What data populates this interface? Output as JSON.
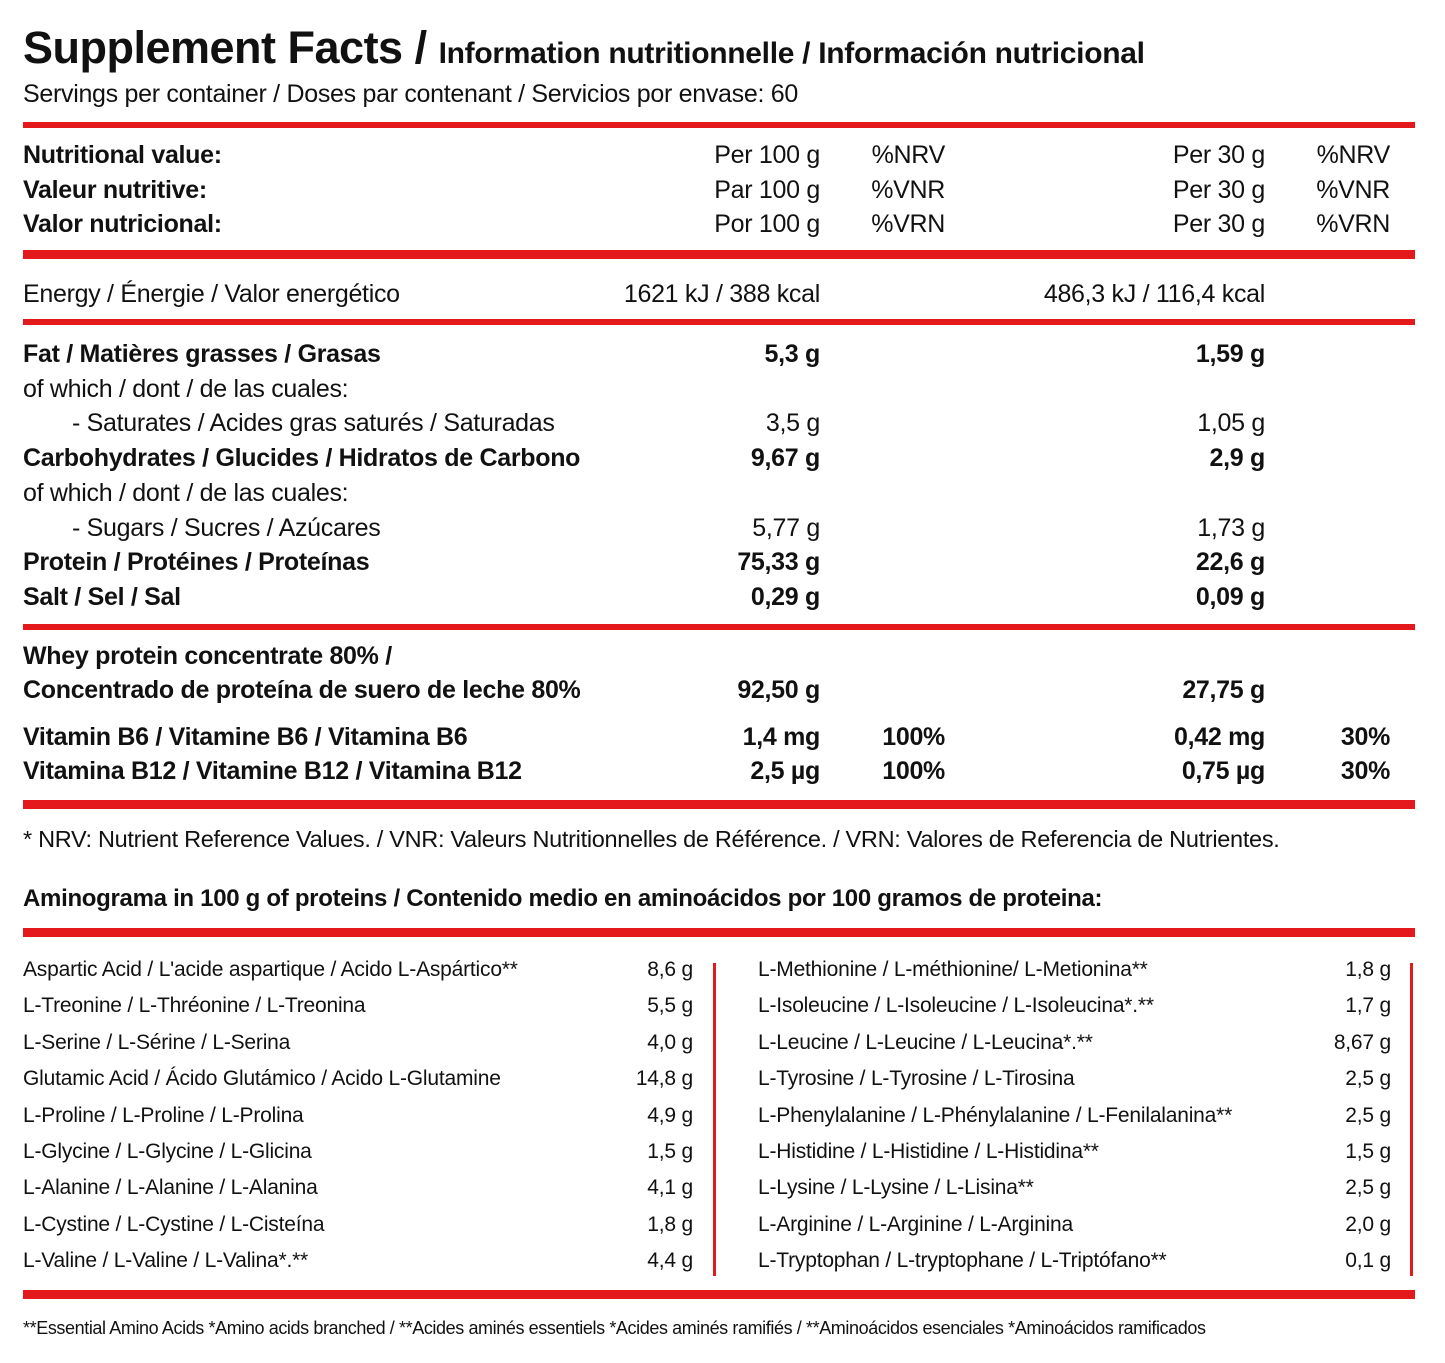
{
  "header": {
    "title": "Supplement Facts /",
    "subtitle": "Information nutritionnelle / Información nutricional",
    "servings": "Servings per container / Doses par contenant / Servicios por envase: 60"
  },
  "colors": {
    "accent": "#e3191b",
    "text": "#111111"
  },
  "column_headers": [
    {
      "label": "Nutritional value:",
      "per100": "Per 100 g",
      "pct100": "%NRV",
      "per30": "Per 30 g",
      "pct30": "%NRV"
    },
    {
      "label": "Valeur nutritive:",
      "per100": "Par 100 g",
      "pct100": "%VNR",
      "per30": "Per 30 g",
      "pct30": "%VNR"
    },
    {
      "label": "Valor nutricional:",
      "per100": "Por 100 g",
      "pct100": "%VRN",
      "per30": "Per 30 g",
      "pct30": "%VRN"
    }
  ],
  "energy": {
    "label": "Energy / Énergie / Valor energético",
    "per100": "1621 kJ / 388 kcal",
    "per30": "486,3 kJ / 116,4 kcal"
  },
  "nutrients": [
    {
      "label": "Fat / Matières grasses / Grasas",
      "per100": "5,3 g",
      "per30": "1,59 g",
      "bold": true
    },
    {
      "label": "of which / dont / de las cuales:",
      "per100": "",
      "per30": ""
    },
    {
      "label": "- Saturates / Acides gras saturés / Saturadas",
      "per100": "3,5 g",
      "per30": "1,05 g",
      "indent": true
    },
    {
      "label": "Carbohydrates / Glucides / Hidratos de Carbono",
      "per100": "9,67 g",
      "per30": "2,9 g",
      "bold": true
    },
    {
      "label": "of which / dont / de las cuales:",
      "per100": "",
      "per30": ""
    },
    {
      "label": "- Sugars / Sucres / Azúcares",
      "per100": "5,77 g",
      "per30": "1,73 g",
      "indent": true
    },
    {
      "label": "Protein / Protéines / Proteínas",
      "per100": "75,33 g",
      "per30": "22,6 g",
      "bold": true
    },
    {
      "label": "Salt / Sel / Sal",
      "per100": "0,29 g",
      "per30": "0,09 g",
      "bold": true
    }
  ],
  "ingredients": [
    {
      "label": "Whey protein concentrate 80% /",
      "per100": "",
      "pct100": "",
      "per30": "",
      "pct30": ""
    },
    {
      "label": "Concentrado de proteína de suero de leche 80%",
      "per100": "92,50 g",
      "pct100": "",
      "per30": "27,75 g",
      "pct30": ""
    },
    {
      "label": "Vitamin B6 / Vitamine B6 / Vitamina B6",
      "per100": "1,4 mg",
      "pct100": "100%",
      "per30": "0,42 mg",
      "pct30": "30%"
    },
    {
      "label": "Vitamina B12 / Vitamine B12 / Vitamina B12",
      "per100": "2,5 µg",
      "pct100": "100%",
      "per30": "0,75 µg",
      "pct30": "30%"
    }
  ],
  "reference_note": "* NRV: Nutrient Reference Values. / VNR: Valeurs Nutritionnelles de Référence. / VRN: Valores de Referencia de Nutrientes.",
  "aminogram": {
    "title": "Aminograma in 100 g of proteins / Contenido medio en aminoácidos por 100 gramos de proteina:",
    "left": [
      {
        "name": "Aspartic Acid / L'acide aspartique / Acido L-Aspártico**",
        "value": "8,6 g"
      },
      {
        "name": "L-Treonine / L-Thréonine / L-Treonina",
        "value": "5,5 g"
      },
      {
        "name": "L-Serine / L-Sérine / L-Serina",
        "value": "4,0 g"
      },
      {
        "name": "Glutamic Acid  / Ácido Glutámico / Acido L-Glutamine",
        "value": "14,8 g"
      },
      {
        "name": "L-Proline / L-Proline / L-Prolina",
        "value": "4,9 g"
      },
      {
        "name": "L-Glycine / L-Glycine / L-Glicina",
        "value": "1,5 g"
      },
      {
        "name": "L-Alanine / L-Alanine / L-Alanina",
        "value": "4,1 g"
      },
      {
        "name": "L-Cystine / L-Cystine / L-Cisteína",
        "value": "1,8 g"
      },
      {
        "name": "L-Valine / L-Valine / L-Valina*.**",
        "value": "4,4 g"
      }
    ],
    "right": [
      {
        "name": "L-Methionine / L-méthionine/ L-Metionina**",
        "value": "1,8 g"
      },
      {
        "name": "L-Isoleucine / L-Isoleucine / L-Isoleucina*.**",
        "value": "1,7 g"
      },
      {
        "name": "L-Leucine / L-Leucine / L-Leucina*.**",
        "value": "8,67 g"
      },
      {
        "name": "L-Tyrosine / L-Tyrosine / L-Tirosina",
        "value": "2,5 g"
      },
      {
        "name": "L-Phenylalanine / L-Phénylalanine / L-Fenilalanina**",
        "value": "2,5 g"
      },
      {
        "name": "L-Histidine / L-Histidine / L-Histidina**",
        "value": "1,5 g"
      },
      {
        "name": "L-Lysine / L-Lysine / L-Lisina**",
        "value": "2,5 g"
      },
      {
        "name": "L-Arginine / L-Arginine / L-Arginina",
        "value": "2,0 g"
      },
      {
        "name": "L-Tryptophan / L-tryptophane / L-Triptófano**",
        "value": "0,1 g"
      }
    ]
  },
  "footer": "**Essential Amino Acids *Amino acids branched  / **Acides aminés essentiels *Acides aminés ramifiés /  **Aminoácidos esenciales  *Aminoácidos ramificados"
}
